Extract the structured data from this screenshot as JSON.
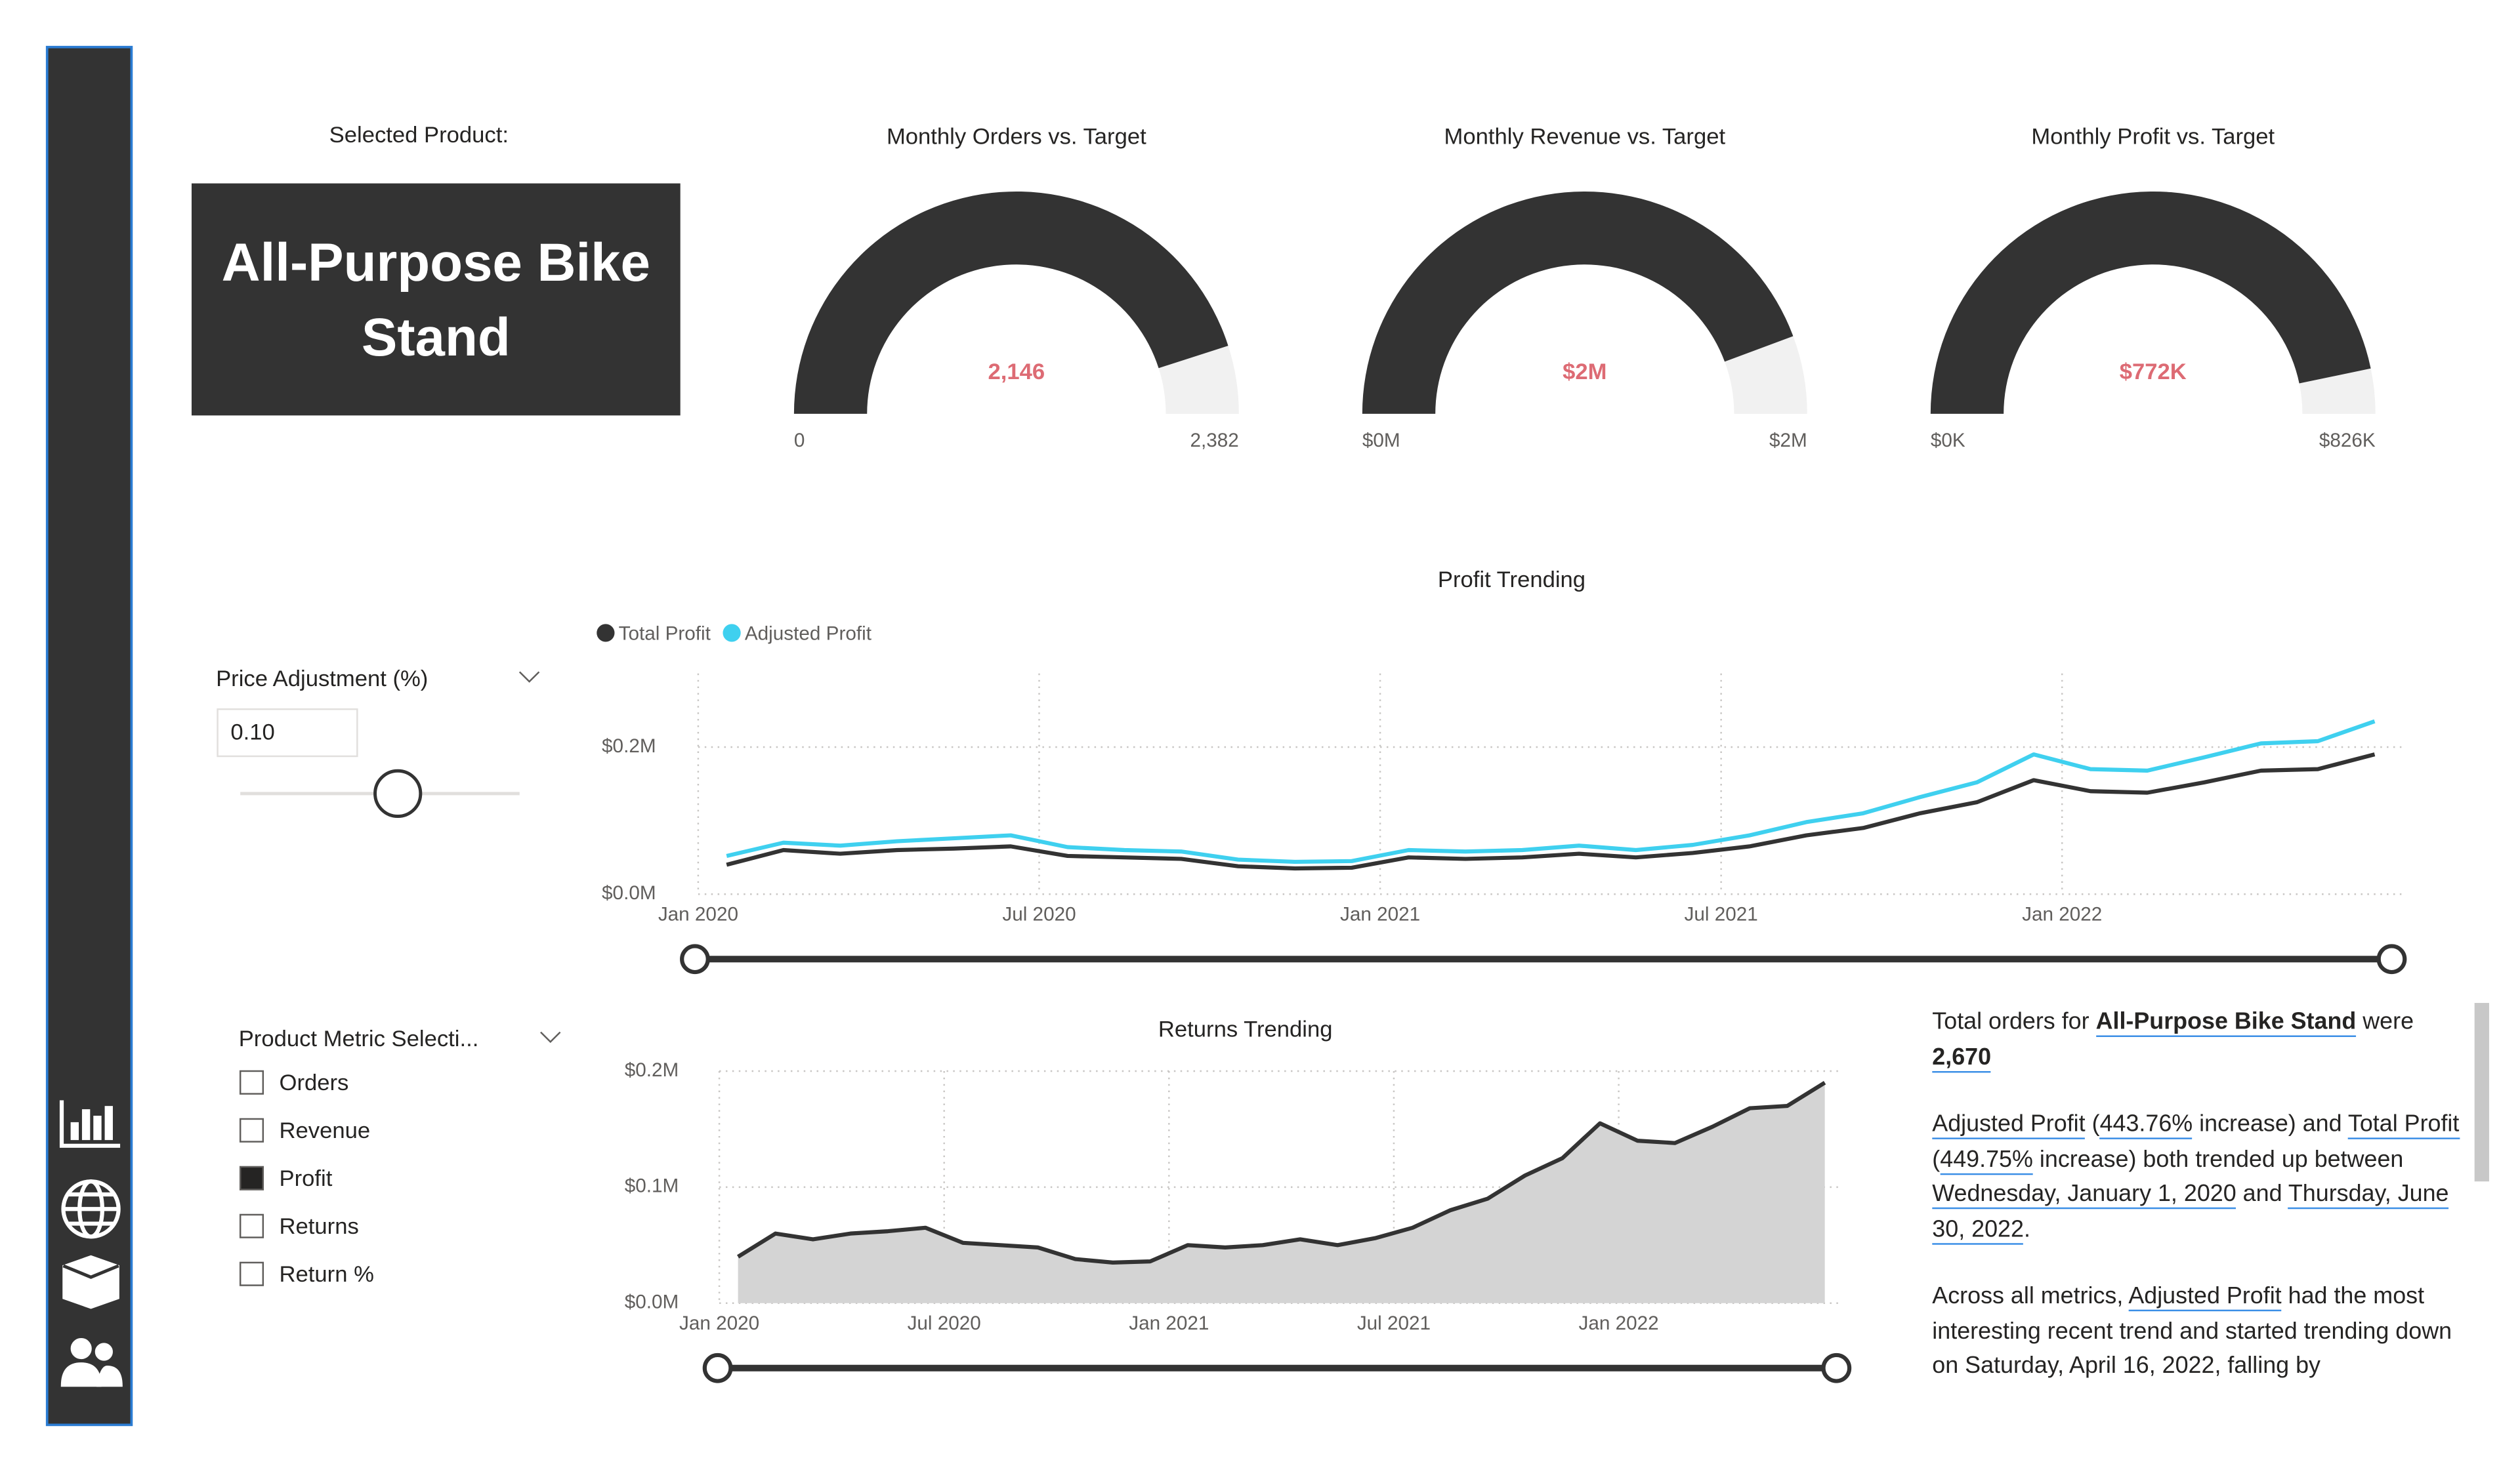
{
  "selected_product": {
    "label": "Selected Product:",
    "name": "All-Purpose Bike Stand"
  },
  "price_adjustment": {
    "label": "Price Adjustment (%)",
    "value": "0.10"
  },
  "metric_selection": {
    "label": "Product Metric Selecti...",
    "items": [
      {
        "text": "Orders",
        "checked": false
      },
      {
        "text": "Revenue",
        "checked": false
      },
      {
        "text": "Profit",
        "checked": true
      },
      {
        "text": "Returns",
        "checked": false
      },
      {
        "text": "Return %",
        "checked": false
      }
    ]
  },
  "narrative": {
    "paragraphs": [
      [
        {
          "text": "Total orders for "
        },
        {
          "text": "All-Purpose Bike Stand",
          "style": "bold-link"
        },
        {
          "text": " were "
        },
        {
          "text": "2,670",
          "style": "bold-link"
        }
      ],
      [
        {
          "text": "Adjusted Profit",
          "style": "link"
        },
        {
          "text": " ("
        },
        {
          "text": "443.76%",
          "style": "link"
        },
        {
          "text": " increase) and "
        },
        {
          "text": "Total Profit",
          "style": "link"
        },
        {
          "text": " ("
        },
        {
          "text": "449.75%",
          "style": "link"
        },
        {
          "text": " increase) both trended up between "
        },
        {
          "text": "Wednesday, January 1, 2020",
          "style": "link"
        },
        {
          "text": " and "
        },
        {
          "text": "Thursday, June 30, 2022",
          "style": "link"
        },
        {
          "text": "."
        }
      ],
      [
        {
          "text": "Across all metrics, "
        },
        {
          "text": "Adjusted Profit",
          "style": "link"
        },
        {
          "text": " had the most interesting recent trend and started trending down on Saturday, April 16, 2022, falling by"
        }
      ]
    ]
  },
  "chart_data": [
    {
      "type": "gauge",
      "title": "Monthly Orders vs. Target",
      "value": 2146,
      "value_label": "2,146",
      "min": 0,
      "max": {
        "value": 2382,
        "label": "2,382"
      },
      "color": "#333333",
      "track_color": "#f1f1f1",
      "value_color": "#dd6b74"
    },
    {
      "type": "gauge",
      "title": "Monthly Revenue vs. Target",
      "value": 1950000,
      "value_label": "$2M",
      "min": {
        "value": 0,
        "label": "$0M"
      },
      "max": {
        "value": 2200000,
        "label": "$2M"
      },
      "color": "#333333",
      "track_color": "#f1f1f1",
      "value_color": "#dd6b74"
    },
    {
      "type": "gauge",
      "title": "Monthly Profit vs. Target",
      "value": 772000,
      "value_label": "$772K",
      "min": {
        "value": 0,
        "label": "$0K"
      },
      "max": {
        "value": 826000,
        "label": "$826K"
      },
      "color": "#333333",
      "track_color": "#f1f1f1",
      "value_color": "#dd6b74"
    },
    {
      "type": "line",
      "title": "Profit Trending",
      "legend": "top-left",
      "grid": true,
      "x": [
        "2020-01",
        "2020-02",
        "2020-03",
        "2020-04",
        "2020-05",
        "2020-06",
        "2020-07",
        "2020-08",
        "2020-09",
        "2020-10",
        "2020-11",
        "2020-12",
        "2021-01",
        "2021-02",
        "2021-03",
        "2021-04",
        "2021-05",
        "2021-06",
        "2021-07",
        "2021-08",
        "2021-09",
        "2021-10",
        "2021-11",
        "2021-12",
        "2022-01",
        "2022-02",
        "2022-03",
        "2022-04",
        "2022-05",
        "2022-06"
      ],
      "series": [
        {
          "name": "Total Profit",
          "color": "#333333",
          "values": [
            40000,
            60000,
            55000,
            60000,
            62000,
            65000,
            52000,
            50000,
            48000,
            38000,
            35000,
            36000,
            50000,
            48000,
            50000,
            55000,
            50000,
            56000,
            65000,
            80000,
            90000,
            110000,
            125000,
            155000,
            140000,
            138000,
            152000,
            168000,
            170000,
            190000
          ]
        },
        {
          "name": "Adjusted Profit",
          "color": "#3fd0ef",
          "values": [
            52000,
            70000,
            66000,
            72000,
            76000,
            80000,
            64000,
            60000,
            58000,
            47000,
            44000,
            45000,
            60000,
            58000,
            60000,
            66000,
            60000,
            67000,
            80000,
            98000,
            110000,
            132000,
            152000,
            190000,
            170000,
            168000,
            186000,
            205000,
            208000,
            235000
          ]
        }
      ],
      "ylim": [
        0,
        300000
      ],
      "yticks": [
        {
          "value": 0,
          "label": "$0.0M"
        },
        {
          "value": 200000,
          "label": "$0.2M"
        }
      ],
      "xticks": [
        {
          "value": "2020-01",
          "label": "Jan 2020"
        },
        {
          "value": "2020-07",
          "label": "Jul 2020"
        },
        {
          "value": "2021-01",
          "label": "Jan 2021"
        },
        {
          "value": "2021-07",
          "label": "Jul 2021"
        },
        {
          "value": "2022-01",
          "label": "Jan 2022"
        }
      ]
    },
    {
      "type": "area",
      "title": "Returns Trending",
      "grid": true,
      "color": "#333333",
      "fill": "#d4d4d4",
      "x": [
        "2020-01",
        "2020-02",
        "2020-03",
        "2020-04",
        "2020-05",
        "2020-06",
        "2020-07",
        "2020-08",
        "2020-09",
        "2020-10",
        "2020-11",
        "2020-12",
        "2021-01",
        "2021-02",
        "2021-03",
        "2021-04",
        "2021-05",
        "2021-06",
        "2021-07",
        "2021-08",
        "2021-09",
        "2021-10",
        "2021-11",
        "2021-12",
        "2022-01",
        "2022-02",
        "2022-03",
        "2022-04",
        "2022-05",
        "2022-06"
      ],
      "values": [
        40000,
        60000,
        55000,
        60000,
        62000,
        65000,
        52000,
        50000,
        48000,
        38000,
        35000,
        36000,
        50000,
        48000,
        50000,
        55000,
        50000,
        56000,
        65000,
        80000,
        90000,
        110000,
        125000,
        155000,
        140000,
        138000,
        152000,
        168000,
        170000,
        190000
      ],
      "ylim": [
        0,
        200000
      ],
      "yticks": [
        {
          "value": 0,
          "label": "$0.0M"
        },
        {
          "value": 100000,
          "label": "$0.1M"
        },
        {
          "value": 200000,
          "label": "$0.2M"
        }
      ],
      "xticks": [
        {
          "value": "2020-01",
          "label": "Jan 2020"
        },
        {
          "value": "2020-07",
          "label": "Jul 2020"
        },
        {
          "value": "2021-01",
          "label": "Jan 2021"
        },
        {
          "value": "2021-07",
          "label": "Jul 2021"
        },
        {
          "value": "2022-01",
          "label": "Jan 2022"
        }
      ]
    }
  ]
}
